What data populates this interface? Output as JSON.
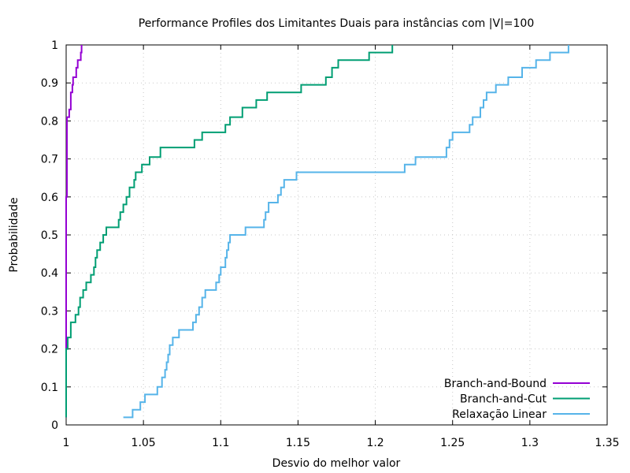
{
  "chart_data": {
    "type": "line",
    "line_shape": "step",
    "title": "Performance Profiles dos Limitantes Duais para instâncias com |V|=100",
    "xlabel": "Desvio do melhor valor",
    "ylabel": "Probabilidade",
    "xlim": [
      1,
      1.35
    ],
    "ylim": [
      0,
      1
    ],
    "x_ticks": [
      "1",
      "1.05",
      "1.1",
      "1.15",
      "1.2",
      "1.25",
      "1.3",
      "1.35"
    ],
    "y_ticks": [
      "0",
      "0.1",
      "0.2",
      "0.3",
      "0.4",
      "0.5",
      "0.6",
      "0.7",
      "0.8",
      "0.9",
      "1"
    ],
    "grid": true,
    "legend_position": "bottom-right",
    "series": [
      {
        "name": "Branch-and-Bound",
        "color": "#9400d3",
        "points": [
          [
            1.0,
            0.02
          ],
          [
            1.0,
            0.6
          ],
          [
            1.0005,
            0.6
          ],
          [
            1.0005,
            0.81
          ],
          [
            1.002,
            0.81
          ],
          [
            1.002,
            0.83
          ],
          [
            1.003,
            0.83
          ],
          [
            1.003,
            0.875
          ],
          [
            1.004,
            0.875
          ],
          [
            1.004,
            0.895
          ],
          [
            1.0045,
            0.895
          ],
          [
            1.0045,
            0.915
          ],
          [
            1.0065,
            0.915
          ],
          [
            1.0065,
            0.94
          ],
          [
            1.0075,
            0.94
          ],
          [
            1.0075,
            0.96
          ],
          [
            1.0095,
            0.96
          ],
          [
            1.0095,
            0.98
          ],
          [
            1.01,
            0.98
          ],
          [
            1.01,
            1.0
          ]
        ]
      },
      {
        "name": "Branch-and-Cut",
        "color": "#009e73",
        "points": [
          [
            1.0,
            0.02
          ],
          [
            1.0,
            0.2
          ],
          [
            1.001,
            0.2
          ],
          [
            1.001,
            0.23
          ],
          [
            1.003,
            0.23
          ],
          [
            1.003,
            0.27
          ],
          [
            1.006,
            0.27
          ],
          [
            1.006,
            0.29
          ],
          [
            1.008,
            0.29
          ],
          [
            1.008,
            0.31
          ],
          [
            1.009,
            0.31
          ],
          [
            1.009,
            0.335
          ],
          [
            1.011,
            0.335
          ],
          [
            1.011,
            0.355
          ],
          [
            1.013,
            0.355
          ],
          [
            1.013,
            0.375
          ],
          [
            1.016,
            0.375
          ],
          [
            1.016,
            0.395
          ],
          [
            1.018,
            0.395
          ],
          [
            1.018,
            0.415
          ],
          [
            1.019,
            0.415
          ],
          [
            1.019,
            0.44
          ],
          [
            1.02,
            0.44
          ],
          [
            1.02,
            0.46
          ],
          [
            1.022,
            0.46
          ],
          [
            1.022,
            0.48
          ],
          [
            1.024,
            0.48
          ],
          [
            1.024,
            0.5
          ],
          [
            1.026,
            0.5
          ],
          [
            1.026,
            0.52
          ],
          [
            1.034,
            0.52
          ],
          [
            1.034,
            0.54
          ],
          [
            1.035,
            0.54
          ],
          [
            1.035,
            0.56
          ],
          [
            1.037,
            0.56
          ],
          [
            1.037,
            0.58
          ],
          [
            1.039,
            0.58
          ],
          [
            1.039,
            0.6
          ],
          [
            1.041,
            0.6
          ],
          [
            1.041,
            0.625
          ],
          [
            1.044,
            0.625
          ],
          [
            1.044,
            0.645
          ],
          [
            1.045,
            0.645
          ],
          [
            1.045,
            0.665
          ],
          [
            1.049,
            0.665
          ],
          [
            1.049,
            0.685
          ],
          [
            1.054,
            0.685
          ],
          [
            1.054,
            0.705
          ],
          [
            1.061,
            0.705
          ],
          [
            1.061,
            0.73
          ],
          [
            1.083,
            0.73
          ],
          [
            1.083,
            0.75
          ],
          [
            1.088,
            0.75
          ],
          [
            1.088,
            0.77
          ],
          [
            1.103,
            0.77
          ],
          [
            1.103,
            0.79
          ],
          [
            1.106,
            0.79
          ],
          [
            1.106,
            0.81
          ],
          [
            1.114,
            0.81
          ],
          [
            1.114,
            0.835
          ],
          [
            1.123,
            0.835
          ],
          [
            1.123,
            0.855
          ],
          [
            1.13,
            0.855
          ],
          [
            1.13,
            0.875
          ],
          [
            1.152,
            0.875
          ],
          [
            1.152,
            0.895
          ],
          [
            1.168,
            0.895
          ],
          [
            1.168,
            0.915
          ],
          [
            1.172,
            0.915
          ],
          [
            1.172,
            0.94
          ],
          [
            1.176,
            0.94
          ],
          [
            1.176,
            0.96
          ],
          [
            1.196,
            0.96
          ],
          [
            1.196,
            0.98
          ],
          [
            1.211,
            0.98
          ],
          [
            1.211,
            1.0
          ]
        ]
      },
      {
        "name": "Relaxação Linear",
        "color": "#56b4e9",
        "points": [
          [
            1.037,
            0.02
          ],
          [
            1.043,
            0.02
          ],
          [
            1.043,
            0.04
          ],
          [
            1.048,
            0.04
          ],
          [
            1.048,
            0.06
          ],
          [
            1.051,
            0.06
          ],
          [
            1.051,
            0.08
          ],
          [
            1.059,
            0.08
          ],
          [
            1.059,
            0.1
          ],
          [
            1.062,
            0.1
          ],
          [
            1.062,
            0.125
          ],
          [
            1.064,
            0.125
          ],
          [
            1.064,
            0.145
          ],
          [
            1.065,
            0.145
          ],
          [
            1.065,
            0.165
          ],
          [
            1.066,
            0.165
          ],
          [
            1.066,
            0.185
          ],
          [
            1.067,
            0.185
          ],
          [
            1.067,
            0.21
          ],
          [
            1.069,
            0.21
          ],
          [
            1.069,
            0.23
          ],
          [
            1.073,
            0.23
          ],
          [
            1.073,
            0.25
          ],
          [
            1.082,
            0.25
          ],
          [
            1.082,
            0.27
          ],
          [
            1.084,
            0.27
          ],
          [
            1.084,
            0.29
          ],
          [
            1.086,
            0.29
          ],
          [
            1.086,
            0.31
          ],
          [
            1.088,
            0.31
          ],
          [
            1.088,
            0.335
          ],
          [
            1.09,
            0.335
          ],
          [
            1.09,
            0.355
          ],
          [
            1.097,
            0.355
          ],
          [
            1.097,
            0.375
          ],
          [
            1.099,
            0.375
          ],
          [
            1.099,
            0.395
          ],
          [
            1.1,
            0.395
          ],
          [
            1.1,
            0.415
          ],
          [
            1.103,
            0.415
          ],
          [
            1.103,
            0.44
          ],
          [
            1.104,
            0.44
          ],
          [
            1.104,
            0.46
          ],
          [
            1.105,
            0.46
          ],
          [
            1.105,
            0.48
          ],
          [
            1.106,
            0.48
          ],
          [
            1.106,
            0.5
          ],
          [
            1.116,
            0.5
          ],
          [
            1.116,
            0.52
          ],
          [
            1.128,
            0.52
          ],
          [
            1.128,
            0.54
          ],
          [
            1.129,
            0.54
          ],
          [
            1.129,
            0.56
          ],
          [
            1.131,
            0.56
          ],
          [
            1.131,
            0.585
          ],
          [
            1.137,
            0.585
          ],
          [
            1.137,
            0.605
          ],
          [
            1.139,
            0.605
          ],
          [
            1.139,
            0.625
          ],
          [
            1.141,
            0.625
          ],
          [
            1.141,
            0.645
          ],
          [
            1.149,
            0.645
          ],
          [
            1.149,
            0.665
          ],
          [
            1.219,
            0.665
          ],
          [
            1.219,
            0.685
          ],
          [
            1.226,
            0.685
          ],
          [
            1.226,
            0.705
          ],
          [
            1.246,
            0.705
          ],
          [
            1.246,
            0.73
          ],
          [
            1.248,
            0.73
          ],
          [
            1.248,
            0.75
          ],
          [
            1.25,
            0.75
          ],
          [
            1.25,
            0.77
          ],
          [
            1.261,
            0.77
          ],
          [
            1.261,
            0.79
          ],
          [
            1.263,
            0.79
          ],
          [
            1.263,
            0.81
          ],
          [
            1.268,
            0.81
          ],
          [
            1.268,
            0.835
          ],
          [
            1.27,
            0.835
          ],
          [
            1.27,
            0.855
          ],
          [
            1.272,
            0.855
          ],
          [
            1.272,
            0.875
          ],
          [
            1.278,
            0.875
          ],
          [
            1.278,
            0.895
          ],
          [
            1.286,
            0.895
          ],
          [
            1.286,
            0.915
          ],
          [
            1.295,
            0.915
          ],
          [
            1.295,
            0.94
          ],
          [
            1.304,
            0.94
          ],
          [
            1.304,
            0.96
          ],
          [
            1.313,
            0.96
          ],
          [
            1.313,
            0.98
          ],
          [
            1.325,
            0.98
          ],
          [
            1.325,
            1.0
          ]
        ]
      }
    ]
  }
}
